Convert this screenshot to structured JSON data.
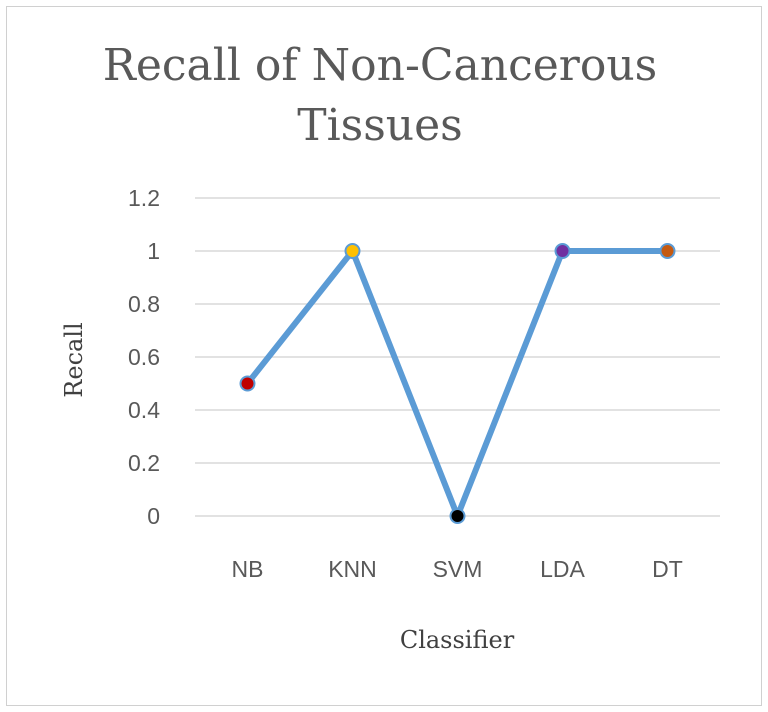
{
  "chart_data": {
    "type": "line",
    "title_lines": [
      "Recall of Non-Cancerous",
      "Tissues"
    ],
    "xlabel": "Classifier",
    "ylabel": "Recall",
    "categories": [
      "NB",
      "KNN",
      "SVM",
      "LDA",
      "DT"
    ],
    "series": [
      {
        "values": [
          0.5,
          1,
          0,
          1,
          1
        ],
        "color": "#5b9bd5",
        "marker_colors": [
          "#c00000",
          "#ffc000",
          "#000000",
          "#7030a0",
          "#c55a11"
        ]
      }
    ],
    "ylim": [
      0,
      1.2
    ],
    "yticks": [
      0,
      0.2,
      0.4,
      0.6,
      0.8,
      1,
      1.2
    ],
    "ytick_labels": [
      "0",
      "0.2",
      "0.4",
      "0.6",
      "0.8",
      "1",
      "1.2"
    ],
    "grid": true,
    "legend": "none"
  }
}
